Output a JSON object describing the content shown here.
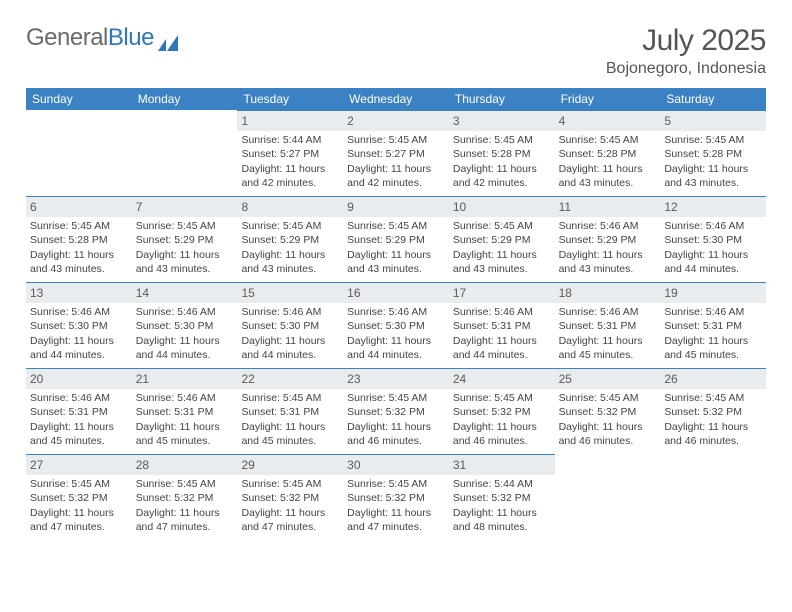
{
  "brand": {
    "part1": "General",
    "part2": "Blue"
  },
  "title": "July 2025",
  "subtitle": "Bojonegoro, Indonesia",
  "colors": {
    "header_bg": "#3b82c4",
    "header_text": "#ffffff",
    "datebar_bg": "#e9ecef",
    "datebar_border": "#3b82c4",
    "body_text": "#444444",
    "page_bg": "#ffffff"
  },
  "typography": {
    "title_fontsize": 30,
    "subtitle_fontsize": 16,
    "dayhead_fontsize": 12,
    "date_fontsize": 12,
    "cell_fontsize": 10.5
  },
  "day_names": [
    "Sunday",
    "Monday",
    "Tuesday",
    "Wednesday",
    "Thursday",
    "Friday",
    "Saturday"
  ],
  "weeks": [
    [
      null,
      null,
      {
        "d": "1",
        "sr": "5:44 AM",
        "ss": "5:27 PM",
        "dl": "11 hours and 42 minutes."
      },
      {
        "d": "2",
        "sr": "5:45 AM",
        "ss": "5:27 PM",
        "dl": "11 hours and 42 minutes."
      },
      {
        "d": "3",
        "sr": "5:45 AM",
        "ss": "5:28 PM",
        "dl": "11 hours and 42 minutes."
      },
      {
        "d": "4",
        "sr": "5:45 AM",
        "ss": "5:28 PM",
        "dl": "11 hours and 43 minutes."
      },
      {
        "d": "5",
        "sr": "5:45 AM",
        "ss": "5:28 PM",
        "dl": "11 hours and 43 minutes."
      }
    ],
    [
      {
        "d": "6",
        "sr": "5:45 AM",
        "ss": "5:28 PM",
        "dl": "11 hours and 43 minutes."
      },
      {
        "d": "7",
        "sr": "5:45 AM",
        "ss": "5:29 PM",
        "dl": "11 hours and 43 minutes."
      },
      {
        "d": "8",
        "sr": "5:45 AM",
        "ss": "5:29 PM",
        "dl": "11 hours and 43 minutes."
      },
      {
        "d": "9",
        "sr": "5:45 AM",
        "ss": "5:29 PM",
        "dl": "11 hours and 43 minutes."
      },
      {
        "d": "10",
        "sr": "5:45 AM",
        "ss": "5:29 PM",
        "dl": "11 hours and 43 minutes."
      },
      {
        "d": "11",
        "sr": "5:46 AM",
        "ss": "5:29 PM",
        "dl": "11 hours and 43 minutes."
      },
      {
        "d": "12",
        "sr": "5:46 AM",
        "ss": "5:30 PM",
        "dl": "11 hours and 44 minutes."
      }
    ],
    [
      {
        "d": "13",
        "sr": "5:46 AM",
        "ss": "5:30 PM",
        "dl": "11 hours and 44 minutes."
      },
      {
        "d": "14",
        "sr": "5:46 AM",
        "ss": "5:30 PM",
        "dl": "11 hours and 44 minutes."
      },
      {
        "d": "15",
        "sr": "5:46 AM",
        "ss": "5:30 PM",
        "dl": "11 hours and 44 minutes."
      },
      {
        "d": "16",
        "sr": "5:46 AM",
        "ss": "5:30 PM",
        "dl": "11 hours and 44 minutes."
      },
      {
        "d": "17",
        "sr": "5:46 AM",
        "ss": "5:31 PM",
        "dl": "11 hours and 44 minutes."
      },
      {
        "d": "18",
        "sr": "5:46 AM",
        "ss": "5:31 PM",
        "dl": "11 hours and 45 minutes."
      },
      {
        "d": "19",
        "sr": "5:46 AM",
        "ss": "5:31 PM",
        "dl": "11 hours and 45 minutes."
      }
    ],
    [
      {
        "d": "20",
        "sr": "5:46 AM",
        "ss": "5:31 PM",
        "dl": "11 hours and 45 minutes."
      },
      {
        "d": "21",
        "sr": "5:46 AM",
        "ss": "5:31 PM",
        "dl": "11 hours and 45 minutes."
      },
      {
        "d": "22",
        "sr": "5:45 AM",
        "ss": "5:31 PM",
        "dl": "11 hours and 45 minutes."
      },
      {
        "d": "23",
        "sr": "5:45 AM",
        "ss": "5:32 PM",
        "dl": "11 hours and 46 minutes."
      },
      {
        "d": "24",
        "sr": "5:45 AM",
        "ss": "5:32 PM",
        "dl": "11 hours and 46 minutes."
      },
      {
        "d": "25",
        "sr": "5:45 AM",
        "ss": "5:32 PM",
        "dl": "11 hours and 46 minutes."
      },
      {
        "d": "26",
        "sr": "5:45 AM",
        "ss": "5:32 PM",
        "dl": "11 hours and 46 minutes."
      }
    ],
    [
      {
        "d": "27",
        "sr": "5:45 AM",
        "ss": "5:32 PM",
        "dl": "11 hours and 47 minutes."
      },
      {
        "d": "28",
        "sr": "5:45 AM",
        "ss": "5:32 PM",
        "dl": "11 hours and 47 minutes."
      },
      {
        "d": "29",
        "sr": "5:45 AM",
        "ss": "5:32 PM",
        "dl": "11 hours and 47 minutes."
      },
      {
        "d": "30",
        "sr": "5:45 AM",
        "ss": "5:32 PM",
        "dl": "11 hours and 47 minutes."
      },
      {
        "d": "31",
        "sr": "5:44 AM",
        "ss": "5:32 PM",
        "dl": "11 hours and 48 minutes."
      },
      null,
      null
    ]
  ],
  "labels": {
    "sunrise": "Sunrise:",
    "sunset": "Sunset:",
    "daylight": "Daylight:"
  }
}
